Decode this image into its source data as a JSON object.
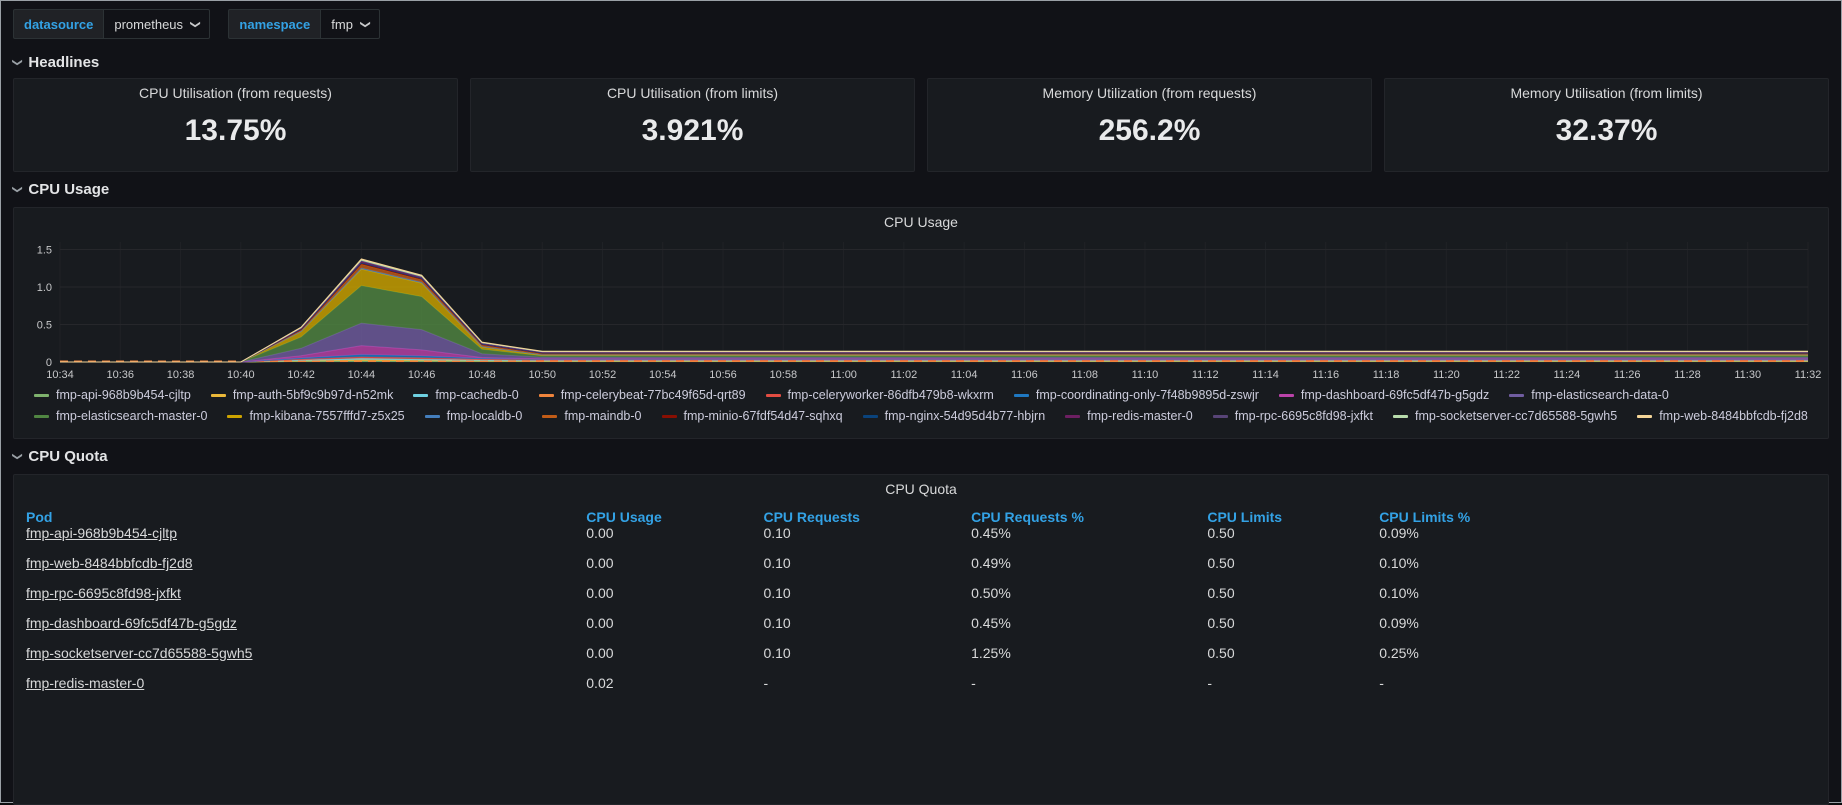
{
  "colors": {
    "accent_blue": "#33a2e5",
    "panel_bg": "#181b1f",
    "page_bg": "#111217",
    "text": "#d8d9da"
  },
  "variables": [
    {
      "label": "datasource",
      "value": "prometheus"
    },
    {
      "label": "namespace",
      "value": "fmp"
    }
  ],
  "sections": {
    "headlines": {
      "title": "Headlines"
    },
    "cpu_usage": {
      "title": "CPU Usage"
    },
    "cpu_quota": {
      "title": "CPU Quota"
    }
  },
  "stats": [
    {
      "title": "CPU Utilisation (from requests)",
      "value": "13.75%"
    },
    {
      "title": "CPU Utilisation (from limits)",
      "value": "3.921%"
    },
    {
      "title": "Memory Utilization (from requests)",
      "value": "256.2%"
    },
    {
      "title": "Memory Utilisation (from limits)",
      "value": "32.37%"
    }
  ],
  "chart_data": {
    "type": "area",
    "stacked": true,
    "title": "CPU Usage",
    "grid": true,
    "legend_position": "bottom",
    "xlabel": "",
    "ylabel": "",
    "ylim": [
      0,
      1.6
    ],
    "yticks": [
      0,
      0.5,
      1.0,
      1.5
    ],
    "x": [
      "10:34",
      "10:36",
      "10:38",
      "10:40",
      "10:42",
      "10:44",
      "10:46",
      "10:48",
      "10:50",
      "10:52",
      "10:54",
      "10:56",
      "10:58",
      "11:00",
      "11:02",
      "11:04",
      "11:06",
      "11:08",
      "11:10",
      "11:12",
      "11:14",
      "11:16",
      "11:18",
      "11:20",
      "11:22",
      "11:24",
      "11:26",
      "11:28",
      "11:30",
      "11:32"
    ],
    "series": [
      {
        "name": "fmp-api-968b9b454-cjltp",
        "color": "#7EB26D",
        "values": [
          0,
          0,
          0,
          0,
          0.008,
          0.015,
          0.012,
          0.008,
          0.006,
          0.006,
          0.006,
          0.006,
          0.006,
          0.006,
          0.006,
          0.006,
          0.006,
          0.006,
          0.006,
          0.006,
          0.006,
          0.006,
          0.006,
          0.006,
          0.006,
          0.006,
          0.006,
          0.006,
          0.006,
          0.006
        ]
      },
      {
        "name": "fmp-auth-5bf9c9b97d-n52mk",
        "color": "#EAB839",
        "values": [
          0,
          0,
          0,
          0,
          0.008,
          0.015,
          0.012,
          0.008,
          0.006,
          0.006,
          0.006,
          0.006,
          0.006,
          0.006,
          0.006,
          0.006,
          0.006,
          0.006,
          0.006,
          0.006,
          0.006,
          0.006,
          0.006,
          0.006,
          0.006,
          0.006,
          0.006,
          0.006,
          0.006,
          0.006
        ]
      },
      {
        "name": "fmp-cachedb-0",
        "color": "#6ED0E0",
        "values": [
          0,
          0,
          0,
          0,
          0.01,
          0.018,
          0.015,
          0.01,
          0.008,
          0.008,
          0.008,
          0.008,
          0.008,
          0.008,
          0.008,
          0.008,
          0.008,
          0.008,
          0.008,
          0.008,
          0.008,
          0.008,
          0.008,
          0.008,
          0.008,
          0.008,
          0.008,
          0.008,
          0.008,
          0.008
        ]
      },
      {
        "name": "fmp-celerybeat-77bc49f65d-qrt89",
        "color": "#EF843C",
        "dash": true,
        "values": [
          0.01,
          0.01,
          0.01,
          0.01,
          0.01,
          0.01,
          0.01,
          0.01,
          0.01,
          0.01,
          0.01,
          0.01,
          0.01,
          0.01,
          0.01,
          0.01,
          0.01,
          0.01,
          0.01,
          0.01,
          0.01,
          0.01,
          0.01,
          0.01,
          0.01,
          0.01,
          0.01,
          0.01,
          0.01,
          0.01
        ]
      },
      {
        "name": "fmp-celeryworker-86dfb479b8-wkxrm",
        "color": "#E24D42",
        "values": [
          0,
          0,
          0,
          0,
          0.012,
          0.02,
          0.018,
          0.012,
          0.01,
          0.01,
          0.01,
          0.01,
          0.01,
          0.01,
          0.01,
          0.01,
          0.01,
          0.01,
          0.01,
          0.01,
          0.01,
          0.01,
          0.01,
          0.01,
          0.01,
          0.01,
          0.01,
          0.01,
          0.01,
          0.01
        ]
      },
      {
        "name": "fmp-coordinating-only-7f48b9895d-zswjr",
        "color": "#1F78C1",
        "values": [
          0,
          0,
          0,
          0,
          0.015,
          0.03,
          0.025,
          0.012,
          0.008,
          0.008,
          0.008,
          0.008,
          0.008,
          0.008,
          0.008,
          0.008,
          0.008,
          0.008,
          0.008,
          0.008,
          0.008,
          0.008,
          0.008,
          0.008,
          0.008,
          0.008,
          0.008,
          0.008,
          0.008,
          0.008
        ]
      },
      {
        "name": "fmp-dashboard-69fc5df47b-g5gdz",
        "color": "#BA43A9",
        "values": [
          0,
          0,
          0,
          0,
          0.03,
          0.12,
          0.08,
          0.01,
          0.005,
          0.005,
          0.005,
          0.005,
          0.005,
          0.005,
          0.005,
          0.005,
          0.005,
          0.005,
          0.005,
          0.005,
          0.005,
          0.005,
          0.005,
          0.005,
          0.005,
          0.005,
          0.005,
          0.005,
          0.005,
          0.005
        ]
      },
      {
        "name": "fmp-elasticsearch-data-0",
        "color": "#705DA0",
        "values": [
          0,
          0,
          0,
          0,
          0.1,
          0.3,
          0.27,
          0.05,
          0.02,
          0.02,
          0.02,
          0.02,
          0.02,
          0.02,
          0.02,
          0.02,
          0.02,
          0.02,
          0.02,
          0.02,
          0.02,
          0.02,
          0.02,
          0.02,
          0.02,
          0.02,
          0.02,
          0.02,
          0.02,
          0.02
        ]
      },
      {
        "name": "fmp-elasticsearch-master-0",
        "color": "#508642",
        "values": [
          0,
          0,
          0,
          0,
          0.15,
          0.5,
          0.44,
          0.06,
          0.018,
          0.018,
          0.018,
          0.018,
          0.018,
          0.018,
          0.018,
          0.018,
          0.018,
          0.018,
          0.018,
          0.018,
          0.018,
          0.018,
          0.018,
          0.018,
          0.018,
          0.018,
          0.018,
          0.018,
          0.018,
          0.018
        ]
      },
      {
        "name": "fmp-kibana-7557fffd7-z5x25",
        "color": "#CCA300",
        "values": [
          0,
          0,
          0,
          0,
          0.07,
          0.22,
          0.18,
          0.03,
          0.01,
          0.01,
          0.01,
          0.01,
          0.01,
          0.01,
          0.01,
          0.01,
          0.01,
          0.01,
          0.01,
          0.01,
          0.01,
          0.01,
          0.01,
          0.01,
          0.01,
          0.01,
          0.01,
          0.01,
          0.01,
          0.01
        ]
      },
      {
        "name": "fmp-localdb-0",
        "color": "#447EBC",
        "values": [
          0,
          0,
          0,
          0,
          0.008,
          0.015,
          0.012,
          0.008,
          0.006,
          0.006,
          0.006,
          0.006,
          0.006,
          0.006,
          0.006,
          0.006,
          0.006,
          0.006,
          0.006,
          0.006,
          0.006,
          0.006,
          0.006,
          0.006,
          0.006,
          0.006,
          0.006,
          0.006,
          0.006,
          0.006
        ]
      },
      {
        "name": "fmp-maindb-0",
        "color": "#C15C17",
        "values": [
          0,
          0,
          0,
          0,
          0.015,
          0.05,
          0.035,
          0.02,
          0.015,
          0.015,
          0.015,
          0.015,
          0.015,
          0.015,
          0.015,
          0.015,
          0.015,
          0.015,
          0.015,
          0.015,
          0.015,
          0.015,
          0.015,
          0.015,
          0.015,
          0.015,
          0.015,
          0.015,
          0.015,
          0.015
        ]
      },
      {
        "name": "fmp-minio-67fdf54d47-sqhxq",
        "color": "#890F02",
        "values": [
          0,
          0,
          0,
          0,
          0.006,
          0.01,
          0.008,
          0.005,
          0.004,
          0.004,
          0.004,
          0.004,
          0.004,
          0.004,
          0.004,
          0.004,
          0.004,
          0.004,
          0.004,
          0.004,
          0.004,
          0.004,
          0.004,
          0.004,
          0.004,
          0.004,
          0.004,
          0.004,
          0.004,
          0.004
        ]
      },
      {
        "name": "fmp-nginx-54d95d4b77-hbjrn",
        "color": "#0A437C",
        "values": [
          0,
          0,
          0,
          0,
          0.006,
          0.01,
          0.008,
          0.005,
          0.004,
          0.004,
          0.004,
          0.004,
          0.004,
          0.004,
          0.004,
          0.004,
          0.004,
          0.004,
          0.004,
          0.004,
          0.004,
          0.004,
          0.004,
          0.004,
          0.004,
          0.004,
          0.004,
          0.004,
          0.004,
          0.004
        ]
      },
      {
        "name": "fmp-redis-master-0",
        "color": "#6D1F62",
        "values": [
          0,
          0,
          0,
          0,
          0.008,
          0.015,
          0.012,
          0.009,
          0.008,
          0.008,
          0.008,
          0.008,
          0.008,
          0.008,
          0.008,
          0.008,
          0.008,
          0.008,
          0.008,
          0.008,
          0.008,
          0.008,
          0.008,
          0.008,
          0.008,
          0.008,
          0.008,
          0.008,
          0.008,
          0.008
        ]
      },
      {
        "name": "fmp-rpc-6695c8fd98-jxfkt",
        "color": "#584477",
        "values": [
          0,
          0,
          0,
          0,
          0.006,
          0.012,
          0.01,
          0.006,
          0.005,
          0.005,
          0.005,
          0.005,
          0.005,
          0.005,
          0.005,
          0.005,
          0.005,
          0.005,
          0.005,
          0.005,
          0.005,
          0.005,
          0.005,
          0.005,
          0.005,
          0.005,
          0.005,
          0.005,
          0.005,
          0.005
        ]
      },
      {
        "name": "fmp-socketserver-cc7d65588-5gwh5",
        "color": "#B7DBAB",
        "values": [
          0,
          0,
          0,
          0,
          0.006,
          0.012,
          0.01,
          0.006,
          0.005,
          0.005,
          0.005,
          0.005,
          0.005,
          0.005,
          0.005,
          0.005,
          0.005,
          0.005,
          0.005,
          0.005,
          0.005,
          0.005,
          0.005,
          0.005,
          0.005,
          0.005,
          0.005,
          0.005,
          0.005,
          0.005
        ]
      },
      {
        "name": "fmp-web-8484bbfcdb-fj2d8",
        "color": "#F4D598",
        "values": [
          0,
          0,
          0,
          0,
          0.006,
          0.012,
          0.01,
          0.006,
          0.005,
          0.005,
          0.005,
          0.005,
          0.005,
          0.005,
          0.005,
          0.005,
          0.005,
          0.005,
          0.005,
          0.005,
          0.005,
          0.005,
          0.005,
          0.005,
          0.005,
          0.005,
          0.005,
          0.005,
          0.005,
          0.005
        ]
      }
    ]
  },
  "table": {
    "title": "CPU Quota",
    "columns": [
      "Pod",
      "CPU Usage",
      "CPU Requests",
      "CPU Requests %",
      "CPU Limits",
      "CPU Limits %"
    ],
    "rows": [
      {
        "pod": "fmp-api-968b9b454-cjltp",
        "cells": [
          "0.00",
          "0.10",
          "0.45%",
          "0.50",
          "0.09%"
        ],
        "clipped": true
      },
      {
        "pod": "fmp-web-8484bbfcdb-fj2d8",
        "cells": [
          "0.00",
          "0.10",
          "0.49%",
          "0.50",
          "0.10%"
        ]
      },
      {
        "pod": "fmp-rpc-6695c8fd98-jxfkt",
        "cells": [
          "0.00",
          "0.10",
          "0.50%",
          "0.50",
          "0.10%"
        ]
      },
      {
        "pod": "fmp-dashboard-69fc5df47b-g5gdz",
        "cells": [
          "0.00",
          "0.10",
          "0.45%",
          "0.50",
          "0.09%"
        ]
      },
      {
        "pod": "fmp-socketserver-cc7d65588-5gwh5",
        "cells": [
          "0.00",
          "0.10",
          "1.25%",
          "0.50",
          "0.25%"
        ]
      },
      {
        "pod": "fmp-redis-master-0",
        "cells": [
          "0.02",
          "-",
          "-",
          "-",
          "-"
        ]
      }
    ]
  }
}
